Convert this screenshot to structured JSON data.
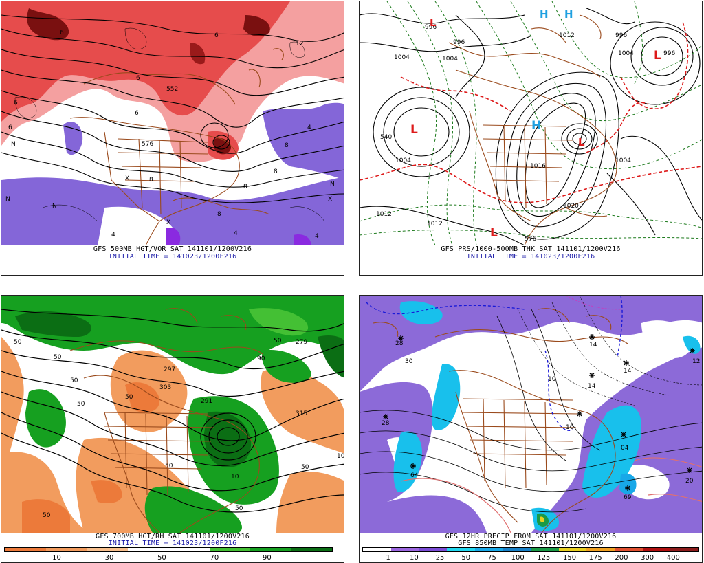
{
  "panels": [
    {
      "caption": "GFS 500MB HGT/VOR SAT 141101/1200V216",
      "subcaption": "INITIAL TIME = 141023/1200F216",
      "contour_labels": [
        "6",
        "6",
        "12",
        "6",
        "6",
        "8",
        "8",
        "8",
        "8",
        "576",
        "552",
        "6",
        "4",
        "4",
        "4",
        "4",
        "8",
        "6"
      ],
      "symbols": [
        "X",
        "X",
        "X",
        "N",
        "N",
        "N",
        "N"
      ]
    },
    {
      "caption": "GFS PRS/1000-500MB THK SAT 141101/1200V216",
      "subcaption": "INITIAL TIME = 141023/1200F216",
      "contour_labels": [
        "996",
        "996",
        "1004",
        "1012",
        "1004",
        "1004",
        "1012",
        "1012",
        "1016",
        "1020",
        "996",
        "1004",
        "540",
        "576",
        "1004",
        "996"
      ],
      "symbols": [
        "L",
        "L",
        "L",
        "L",
        "L",
        "H",
        "H",
        "H"
      ]
    },
    {
      "caption": "GFS 700MB HGT/RH SAT 141101/1200V216",
      "subcaption": "INITIAL TIME = 141023/1200F216",
      "contour_labels": [
        "50",
        "50",
        "50",
        "303",
        "297",
        "291",
        "279",
        "315",
        "50",
        "50",
        "50",
        "10",
        "50",
        "50",
        "10",
        "50",
        "90",
        "50"
      ],
      "colorbar": {
        "labels": [
          "10",
          "30",
          "50",
          "70",
          "90"
        ],
        "colors": [
          "#ec7a3a",
          "#f29c5e",
          "#f8c08e",
          "#ffffff",
          "#ffffff",
          "#44c034",
          "#16a020",
          "#0b6e14"
        ]
      }
    },
    {
      "caption": "GFS 12HR PRECIP FROM SAT 141101/1200V216",
      "subcaption": "GFS 850MB TEMP SAT 141101/1200V216",
      "contour_labels": [
        "28",
        "30",
        "28",
        "64",
        "14",
        "14",
        "14",
        "04",
        "69",
        "20",
        "12",
        "10",
        "10"
      ],
      "colorbar": {
        "labels": [
          "1",
          "10",
          "25",
          "50",
          "75",
          "100",
          "125",
          "150",
          "175",
          "200",
          "300",
          "400"
        ],
        "colors": [
          "#ffffff",
          "#9c66e0",
          "#7b4cd6",
          "#20d8f0",
          "#18a8e8",
          "#1880c8",
          "#1a9a46",
          "#e8d020",
          "#f0a020",
          "#e05030",
          "#b01010",
          "#8c1c1c"
        ]
      }
    }
  ],
  "colors": {
    "vorticity_red": "#e64c4c",
    "vorticity_light": "#f4a0a0",
    "vorticity_dark": "#7a1010",
    "negative_purple": "#8466d8",
    "map_brown": "#9a4a1c",
    "contour_black": "#000000",
    "thickness_green": "#1c7a1c",
    "thickness_red": "#dd1a1a",
    "high_cyan": "#1fa0e0",
    "caption_blue": "#1a1aa8",
    "rh_green": "#16a020",
    "rh_orange": "#f29c5e",
    "precip_purple": "#8c6ad8",
    "precip_cyan": "#18c0ec"
  }
}
